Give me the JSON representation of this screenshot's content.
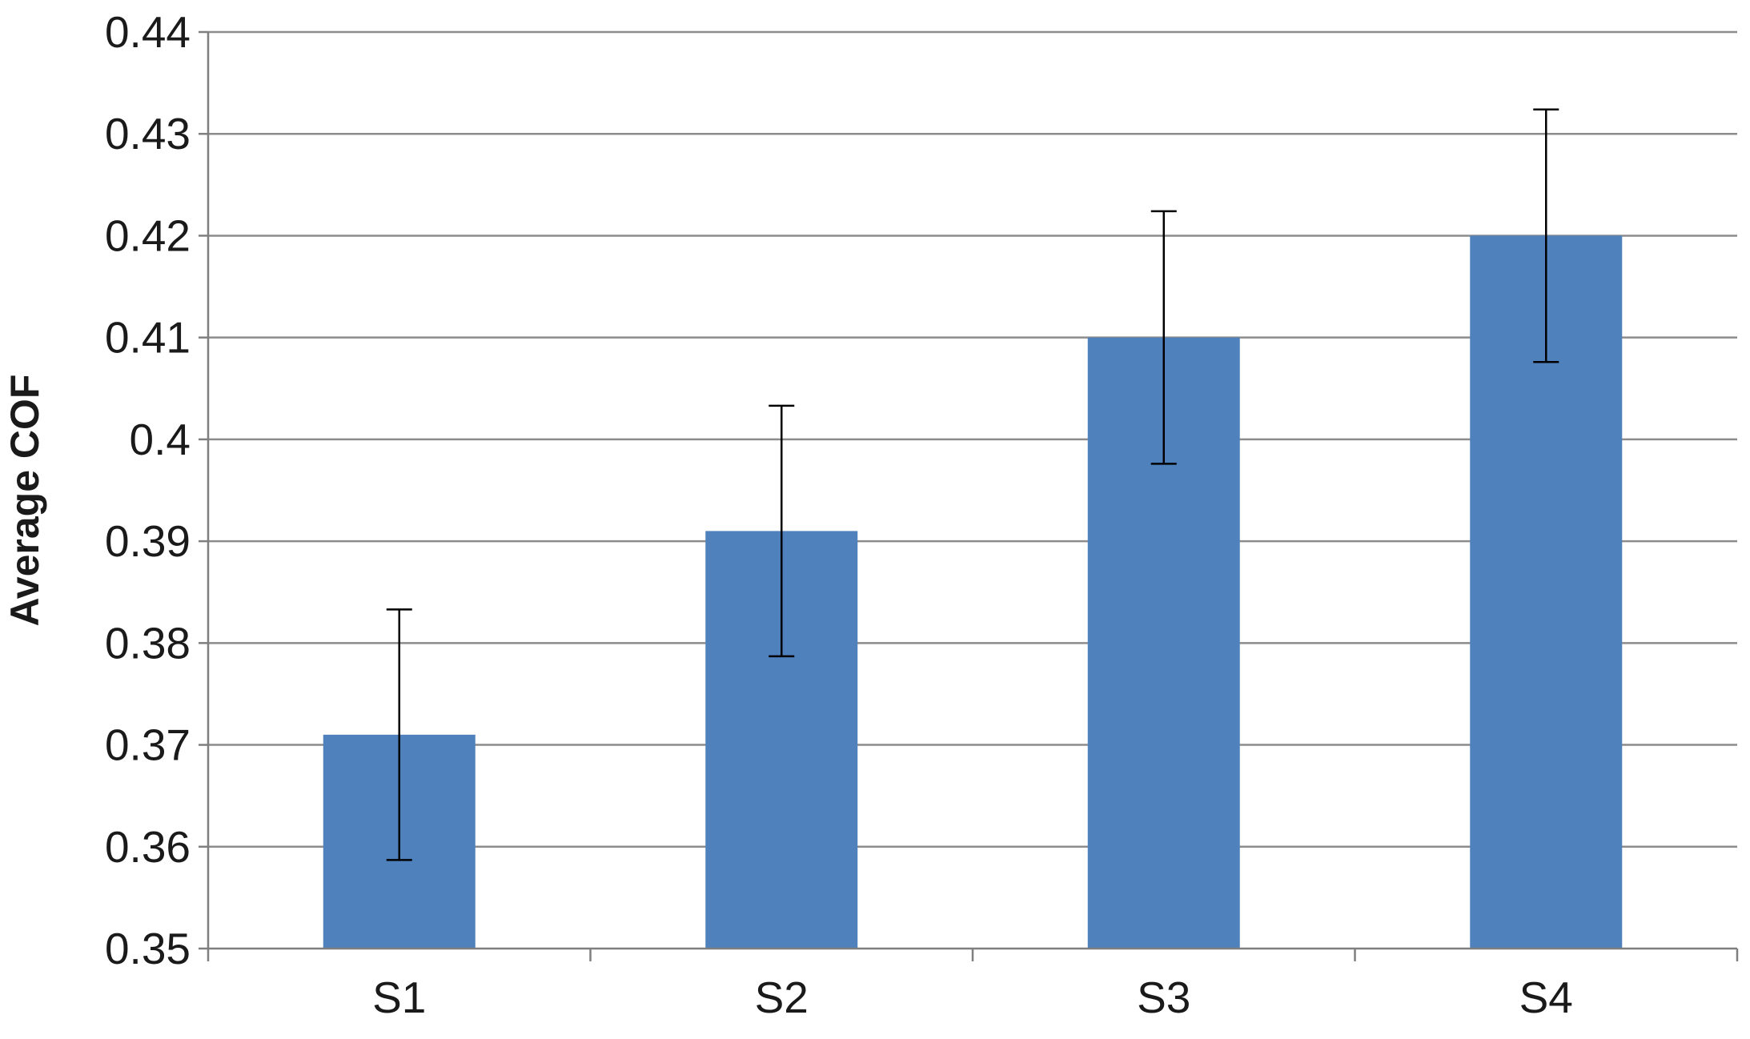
{
  "chart_data": {
    "type": "bar",
    "title": "",
    "xlabel": "",
    "ylabel": "Average COF",
    "categories": [
      "S1",
      "S2",
      "S3",
      "S4"
    ],
    "series": [
      {
        "values": [
          0.371,
          0.391,
          0.41,
          0.42
        ],
        "error": [
          0.0123,
          0.0123,
          0.0124,
          0.0124
        ],
        "color": "#4f81bd"
      }
    ],
    "ylim": [
      0.35,
      0.44
    ],
    "yticks": [
      0.35,
      0.36,
      0.37,
      0.38,
      0.39,
      0.4,
      0.41,
      0.42,
      0.43,
      0.44
    ],
    "ytick_labels": [
      "0.35",
      "0.36",
      "0.37",
      "0.38",
      "0.39",
      "0.4",
      "0.41",
      "0.42",
      "0.43",
      "0.44"
    ],
    "grid": true,
    "legend": "none",
    "colors": {
      "bar": "#4f81bd",
      "grid": "#8c8c8c",
      "axis": "#7f7f7f",
      "error_bar": "#000000",
      "text": "#1a1a1a"
    }
  }
}
